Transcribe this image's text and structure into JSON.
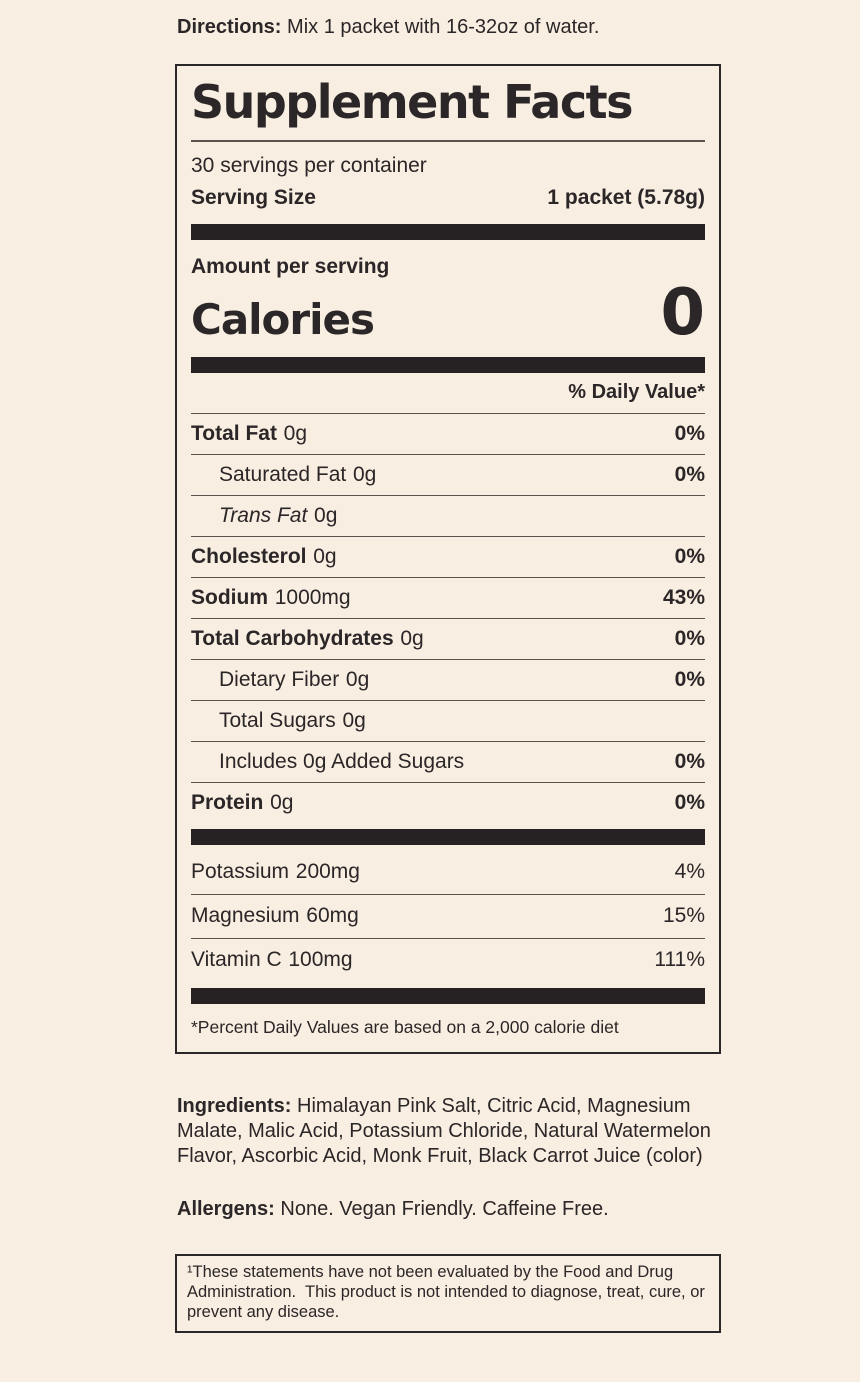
{
  "colors": {
    "background": "#f8eee1",
    "ink": "#2b2627",
    "bar": "#262223"
  },
  "directions": {
    "label": "Directions:",
    "text": "Mix 1 packet with 16-32oz of water."
  },
  "label": {
    "title": "Supplement Facts",
    "servings_per_container": "30 servings per container",
    "serving_size_label": "Serving Size",
    "serving_size_value": "1 packet (5.78g)",
    "amount_per_serving": "Amount per serving",
    "calories_label": "Calories",
    "calories_value": "0",
    "daily_value_header": "% Daily Value*",
    "rows": [
      {
        "name": "Total Fat",
        "amount": "0g",
        "dv": "0%"
      },
      {
        "name": "Saturated Fat",
        "amount": "0g",
        "dv": "0%"
      },
      {
        "name": "Trans Fat",
        "amount": "0g",
        "dv": ""
      },
      {
        "name": "Cholesterol",
        "amount": "0g",
        "dv": "0%"
      },
      {
        "name": "Sodium",
        "amount": "1000mg",
        "dv": "43%"
      },
      {
        "name": "Total Carbohydrates",
        "amount": "0g",
        "dv": "0%"
      },
      {
        "name": "Dietary Fiber",
        "amount": "0g",
        "dv": "0%"
      },
      {
        "name": "Total Sugars",
        "amount": "0g",
        "dv": ""
      },
      {
        "name": "Includes 0g Added Sugars",
        "amount": "",
        "dv": "0%"
      },
      {
        "name": "Protein",
        "amount": "0g",
        "dv": "0%"
      }
    ],
    "minerals": [
      {
        "name": "Potassium",
        "amount": "200mg",
        "dv": "4%"
      },
      {
        "name": "Magnesium",
        "amount": "60mg",
        "dv": "15%"
      },
      {
        "name": "Vitamin C",
        "amount": "100mg",
        "dv": "111%"
      }
    ],
    "footnote": "*Percent Daily Values are based on a 2,000 calorie diet"
  },
  "ingredients": {
    "label": "Ingredients:",
    "text": "Himalayan Pink Salt, Citric Acid, Magnesium Malate, Malic Acid, Potassium Chloride, Natural Watermelon Flavor, Ascorbic Acid, Monk Fruit, Black Carrot Juice (color)"
  },
  "allergens": {
    "label": "Allergens:",
    "text": "None. Vegan Friendly. Caffeine Free."
  },
  "disclaimer": {
    "symbol": "¹",
    "text": "These statements have not been evaluated by the Food and Drug Administration.  This product is not intended to diagnose, treat, cure, or prevent any disease."
  }
}
